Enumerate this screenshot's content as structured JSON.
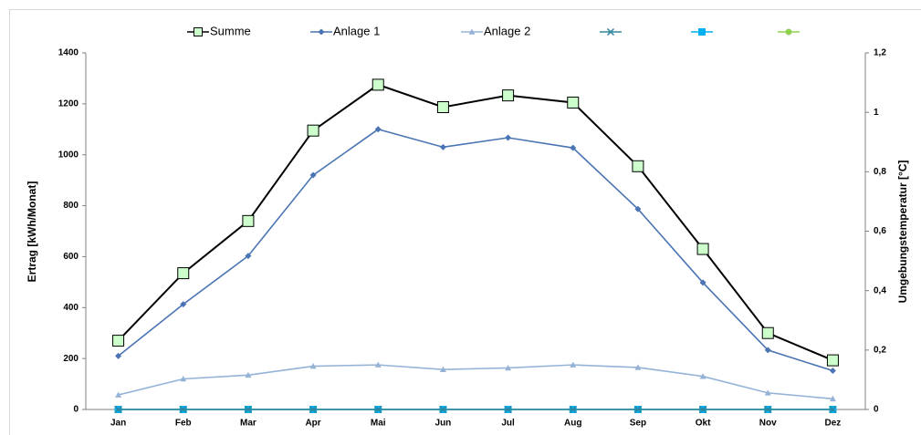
{
  "chart_data": {
    "type": "line",
    "categories": [
      "Jan",
      "Feb",
      "Mar",
      "Apr",
      "Mai",
      "Jun",
      "Jul",
      "Aug",
      "Sep",
      "Okt",
      "Nov",
      "Dez"
    ],
    "series": [
      {
        "name": "Summe",
        "color": "#000000",
        "marker": "square",
        "marker_fill": "#ccffcc",
        "values": [
          270,
          535,
          740,
          1095,
          1275,
          1187,
          1233,
          1205,
          955,
          630,
          300,
          193
        ]
      },
      {
        "name": "Anlage 1",
        "color": "#4a74b4",
        "marker": "diamond",
        "values": [
          210,
          413,
          603,
          920,
          1100,
          1030,
          1067,
          1027,
          787,
          498,
          233,
          152
        ]
      },
      {
        "name": "Anlage 2",
        "color": "#95b3d7",
        "marker": "triangle",
        "values": [
          57,
          120,
          135,
          170,
          175,
          157,
          163,
          175,
          165,
          130,
          65,
          42
        ]
      },
      {
        "color": "#31859c",
        "marker": "x",
        "values": [
          0,
          0,
          0,
          0,
          0,
          0,
          0,
          0,
          0,
          0,
          0,
          0
        ]
      },
      {
        "color": "#00b0f0",
        "marker": "square",
        "values": [
          0,
          0,
          0,
          0,
          0,
          0,
          0,
          0,
          0,
          0,
          0,
          0
        ]
      },
      {
        "color": "#92d050",
        "marker": "circle",
        "axis": "y2",
        "values": [
          0,
          0,
          0,
          0,
          0,
          0,
          0,
          0,
          0,
          0,
          0,
          0
        ]
      }
    ],
    "ylabel": "Ertrag [kWh/Monat]",
    "y2label": "Umgebungstemperatur [°C]",
    "ylim": [
      0,
      1400
    ],
    "yticks": [
      0,
      200,
      400,
      600,
      800,
      1000,
      1200,
      1400
    ],
    "y2lim": [
      0,
      1.2
    ],
    "y2ticks": [
      0,
      {
        "value": 0.2,
        "label": "0,2"
      },
      {
        "value": 0.4,
        "label": "0,4"
      },
      {
        "value": 0.6,
        "label": "0,6"
      },
      {
        "value": 0.8,
        "label": "0,8"
      },
      {
        "value": 1,
        "label": "1"
      },
      {
        "value": 1.2,
        "label": "1,2"
      }
    ],
    "legend": "top",
    "grid": false
  }
}
